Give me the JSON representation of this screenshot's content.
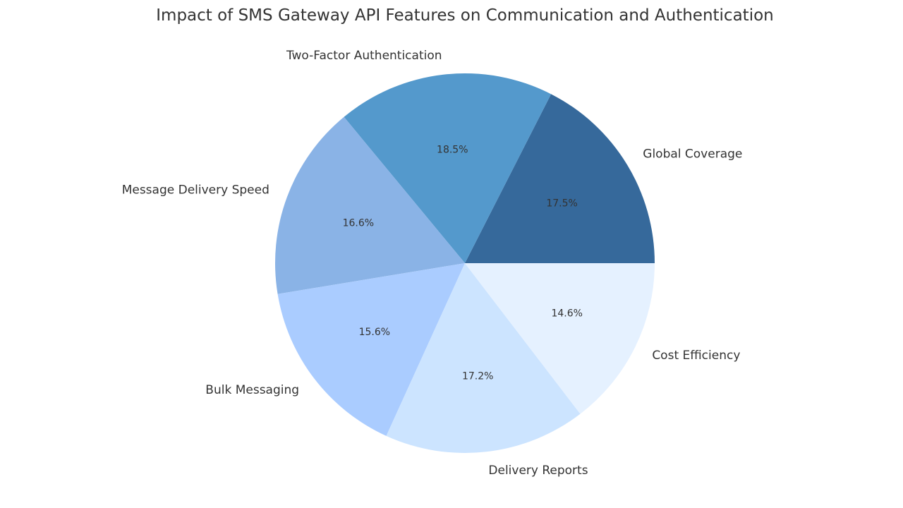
{
  "chart_data": {
    "type": "pie",
    "title": "Impact of SMS Gateway API Features on Communication and Authentication",
    "start_angle_deg": 0,
    "direction": "counterclockwise",
    "legend": "none",
    "slices": [
      {
        "label": "Global Coverage",
        "value": 17.5,
        "pct_label": "17.5%",
        "color": "#36699B"
      },
      {
        "label": "Two-Factor Authentication",
        "value": 18.5,
        "pct_label": "18.5%",
        "color": "#5499CC"
      },
      {
        "label": "Message Delivery Speed",
        "value": 16.6,
        "pct_label": "16.6%",
        "color": "#8AB3E6"
      },
      {
        "label": "Bulk Messaging",
        "value": 15.6,
        "pct_label": "15.6%",
        "color": "#AACCFF"
      },
      {
        "label": "Delivery Reports",
        "value": 17.2,
        "pct_label": "17.2%",
        "color": "#CCE4FF"
      },
      {
        "label": "Cost Efficiency",
        "value": 14.6,
        "pct_label": "14.6%",
        "color": "#E5F1FF"
      }
    ]
  }
}
